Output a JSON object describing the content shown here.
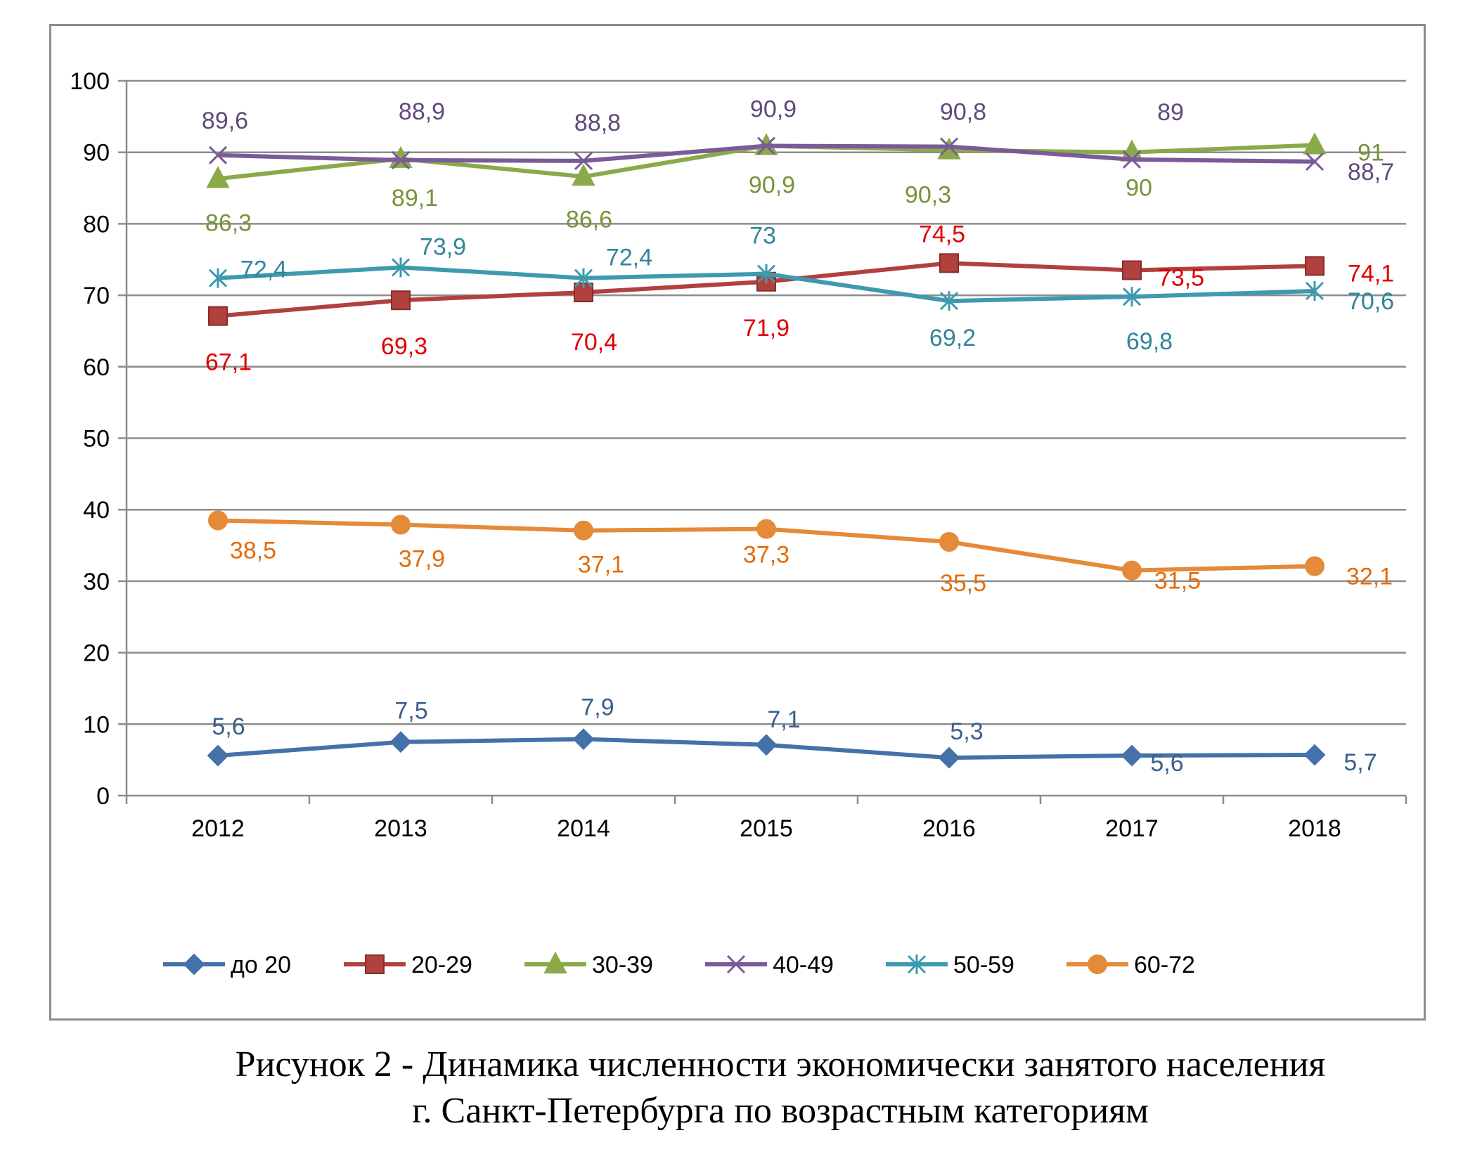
{
  "chart_data": {
    "type": "line",
    "categories": [
      "2012",
      "2013",
      "2014",
      "2015",
      "2016",
      "2017",
      "2018"
    ],
    "ylim": [
      0,
      100
    ],
    "yticks": [
      0,
      10,
      20,
      30,
      40,
      50,
      60,
      70,
      80,
      90,
      100
    ],
    "grid": true,
    "legend_position": "bottom",
    "series": [
      {
        "name": "до 20",
        "marker": "diamond",
        "color": "#4472a8",
        "values": [
          5.6,
          7.5,
          7.9,
          7.1,
          5.3,
          5.6,
          5.7
        ],
        "labels": [
          "5,6",
          "7,5",
          "7,9",
          "7,1",
          "5,3",
          "5,6",
          "5,7"
        ],
        "label_color": "#3b5f8c"
      },
      {
        "name": "20-29",
        "marker": "square",
        "color": "#b0413e",
        "values": [
          67.1,
          69.3,
          70.4,
          71.9,
          74.5,
          73.5,
          74.1
        ],
        "labels": [
          "67,1",
          "69,3",
          "70,4",
          "71,9",
          "74,5",
          "73,5",
          "74,1"
        ],
        "label_color": "#e00000"
      },
      {
        "name": "30-39",
        "marker": "triangle",
        "color": "#8aaa4a",
        "values": [
          86.3,
          89.1,
          86.6,
          90.9,
          90.3,
          90,
          91
        ],
        "labels": [
          "86,3",
          "89,1",
          "86,6",
          "90,9",
          "90,3",
          "90",
          "91"
        ],
        "label_color": "#77933c"
      },
      {
        "name": "40-49",
        "marker": "x",
        "color": "#7b5a99",
        "values": [
          89.6,
          88.9,
          88.8,
          90.9,
          90.8,
          89,
          88.7
        ],
        "labels": [
          "89,6",
          "88,9",
          "88,8",
          "90,9",
          "90,8",
          "89",
          "88,7"
        ],
        "label_color": "#604a7b"
      },
      {
        "name": "50-59",
        "marker": "star",
        "color": "#3e9aae",
        "values": [
          72.4,
          73.9,
          72.4,
          73,
          69.2,
          69.8,
          70.6
        ],
        "labels": [
          "72,4",
          "73,9",
          "72,4",
          "73",
          "69,2",
          "69,8",
          "70,6"
        ],
        "label_color": "#31859c"
      },
      {
        "name": "60-72",
        "marker": "circle",
        "color": "#e48a38",
        "values": [
          38.5,
          37.9,
          37.1,
          37.3,
          35.5,
          31.5,
          32.1
        ],
        "labels": [
          "38,5",
          "37,9",
          "37,1",
          "37,3",
          "35,5",
          "31,5",
          "32,1"
        ],
        "label_color": "#e46c0a"
      }
    ]
  },
  "caption": {
    "line1": "Рисунок 2 - Динамика численности экономически занятого населения",
    "line2": "г. Санкт-Петербурга по возрастным категориям"
  }
}
